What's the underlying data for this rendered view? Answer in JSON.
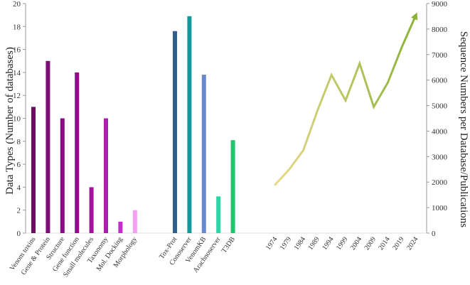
{
  "chart_data": {
    "type": "bar+line",
    "ylabel_left": "Data Types (Number of databases)",
    "ylabel_right": "Sequence Numbers per Database/Publications",
    "ylim_left": [
      0,
      20
    ],
    "yticks_left": [
      "0",
      "2",
      "4",
      "6",
      "8",
      "10",
      "12",
      "14",
      "16",
      "18",
      "20"
    ],
    "ylim_right": [
      0,
      9000
    ],
    "yticks_right": [
      "0",
      "1000",
      "2000",
      "3000",
      "4000",
      "5000",
      "6000",
      "7000",
      "8000",
      "9000"
    ],
    "data_types": {
      "categories": [
        "Venom toxins",
        "Gene & Protein",
        "Structure",
        "Gene function",
        "Small molecules",
        "Taxonomy",
        "Mol. Docking",
        "Morphology"
      ],
      "values": [
        11,
        15,
        10,
        14,
        4,
        10,
        1,
        2
      ],
      "colors": [
        "#6a0f5e",
        "#7a0f74",
        "#860e80",
        "#940c8c",
        "#a4119c",
        "#b31ab0",
        "#c42ccc",
        "#f49ff0"
      ]
    },
    "databases": {
      "categories": [
        "Tox-Prot",
        "Conoserver",
        "VenomKB",
        "Arachnoserver",
        "T3DB"
      ],
      "values": [
        17.6,
        18.9,
        13.8,
        3.2,
        8.1
      ],
      "colors": [
        "#2e5f8e",
        "#14989a",
        "#6a89cc",
        "#2dd4a4",
        "#22c36a"
      ]
    },
    "publications": {
      "x": [
        "1974",
        "1979",
        "1984",
        "1989",
        "1994",
        "1999",
        "2004",
        "2009",
        "2014",
        "2019",
        "2024"
      ],
      "values": [
        1900,
        2500,
        3250,
        4800,
        6200,
        5200,
        6650,
        4950,
        5900,
        7300,
        8550
      ],
      "color_start": "#e8d98a",
      "color_end": "#8bb33a"
    }
  }
}
